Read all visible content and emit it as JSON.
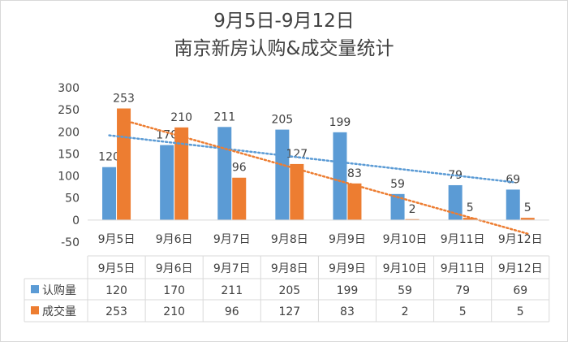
{
  "chart_data": {
    "type": "bar",
    "title_line1": "9月5日-9月12日",
    "title_line2": "南京新房认购&成交量统计",
    "categories": [
      "9月5日",
      "9月6日",
      "9月7日",
      "9月8日",
      "9月9日",
      "9月10日",
      "9月11日",
      "9月12日"
    ],
    "series": [
      {
        "name": "认购量",
        "values": [
          120,
          170,
          211,
          205,
          199,
          59,
          79,
          69
        ],
        "color": "#5b9bd5",
        "trendline": "linear",
        "trend_color": "#5b9bd5"
      },
      {
        "name": "成交量",
        "values": [
          253,
          210,
          96,
          127,
          83,
          2,
          5,
          5
        ],
        "color": "#ed7d31",
        "trendline": "linear",
        "trend_color": "#ed7d31"
      }
    ],
    "ylim": [
      -50,
      300
    ],
    "yticks": [
      -50,
      0,
      50,
      100,
      150,
      200,
      250,
      300
    ],
    "data_labels": true,
    "data_table": true,
    "grid": false,
    "xlabel": "",
    "ylabel": ""
  }
}
